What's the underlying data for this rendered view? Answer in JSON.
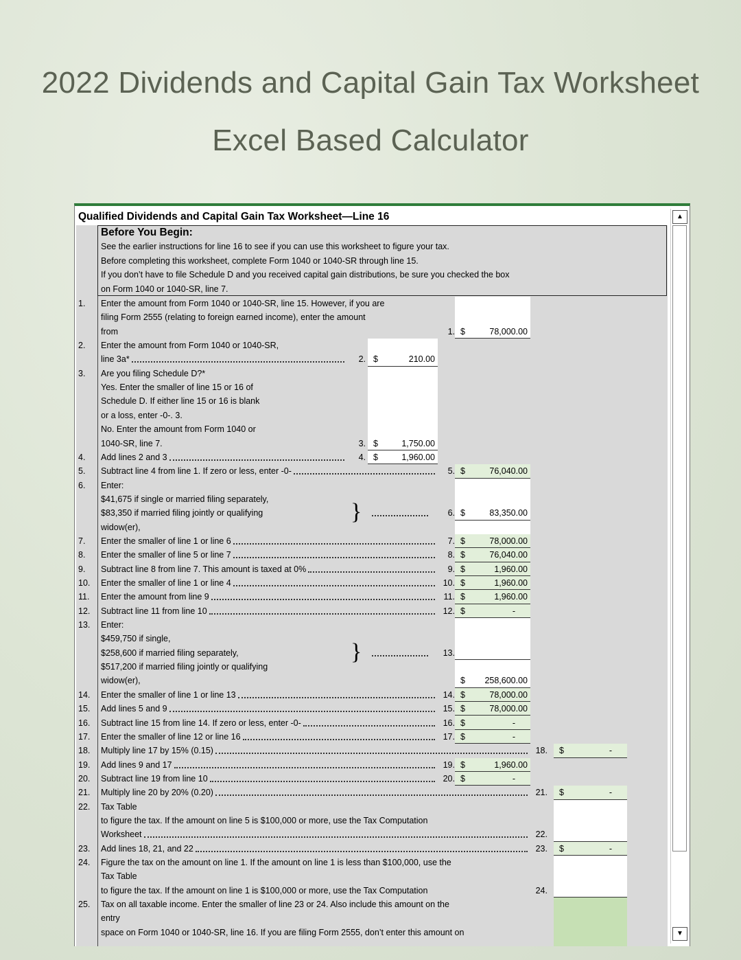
{
  "page": {
    "title_line1": "2022 Dividends and Capital Gain Tax Worksheet",
    "title_line2": "Excel Based Calculator"
  },
  "worksheet": {
    "header": "Qualified Dividends and Capital Gain Tax Worksheet—Line 16",
    "before_you_begin": {
      "heading": "Before You Begin:",
      "lines": [
        "See the earlier instructions for line 16 to see if you can use this worksheet to figure your tax.",
        "Before completing this worksheet, complete Form 1040 or 1040-SR through line 15.",
        "If you don’t have to file Schedule D and you received capital gain distributions, be sure you checked the box",
        "on Form 1040 or 1040-SR, line 7."
      ]
    },
    "colors": {
      "accent": "#2f7d3a",
      "input_bg": "#ffffff",
      "calc_bg": "#e2efda",
      "result_bg": "#c6e0b4",
      "sheet_bg": "#d9d9d9"
    },
    "rows": [
      {
        "num": "1.",
        "text": "Enter the amount from Form 1040 or 1040-SR, line 15. However, if you are"
      },
      {
        "text": "filing Form 2555 (relating to foreign earned income), enter the amount"
      },
      {
        "text": "from",
        "r_lbl": "1.",
        "r_cur": "$",
        "r_amt": "78,000.00"
      },
      {
        "num": "2.",
        "text": "Enter the amount from Form 1040 or 1040-SR,"
      },
      {
        "text": "line 3a*",
        "lead": true,
        "m_lbl": "2.",
        "m_cur": "$",
        "m_amt": "210.00"
      },
      {
        "num": "3.",
        "text": "Are you filing Schedule D?*"
      },
      {
        "text": "Yes. Enter the smaller of line 15 or 16 of"
      },
      {
        "text": "Schedule D. If either line 15 or 16 is blank"
      },
      {
        "text": "or a loss, enter -0-. 3."
      },
      {
        "text": "No. Enter the amount from Form 1040 or"
      },
      {
        "text": "1040-SR, line 7.",
        "m_lbl": "3.",
        "m_cur": "$",
        "m_amt": "1,750.00"
      },
      {
        "num": "4.",
        "text": "Add lines 2 and 3",
        "lead": true,
        "m_lbl": "4.",
        "m_cur": "$",
        "m_amt": "1,960.00"
      },
      {
        "num": "5.",
        "text": "Subtract line 4 from line 1. If zero or less, enter -0-",
        "lead": true,
        "r_lbl": "5.",
        "r_cur": "$",
        "r_amt": "76,040.00"
      },
      {
        "num": "6.",
        "text": "Enter:"
      },
      {
        "text": "$41,675 if single or married filing separately,"
      },
      {
        "text": "$83,350 if married filing jointly or qualifying",
        "brace": "}",
        "r_lbl": "6.",
        "r_cur": "$",
        "r_amt": "83,350.00"
      },
      {
        "text": "widow(er),"
      },
      {
        "num": "7.",
        "text": "Enter the smaller of line 1 or line 6",
        "lead": true,
        "r_lbl": "7.",
        "r_cur": "$",
        "r_amt": "78,000.00"
      },
      {
        "num": "8.",
        "text": "Enter the smaller of line 5 or line 7",
        "lead": true,
        "r_lbl": "8.",
        "r_cur": "$",
        "r_amt": "76,040.00"
      },
      {
        "num": "9.",
        "text": "Subtract line 8 from line 7. This amount is taxed at 0%",
        "lead": true,
        "r_lbl": "9.",
        "r_cur": "$",
        "r_amt": "1,960.00"
      },
      {
        "num": "10.",
        "text": "Enter the smaller of line 1 or line 4",
        "lead": true,
        "r_lbl": "10.",
        "r_cur": "$",
        "r_amt": "1,960.00"
      },
      {
        "num": "11.",
        "text": "Enter the amount from line 9",
        "lead": true,
        "r_lbl": "11.",
        "r_cur": "$",
        "r_amt": "1,960.00"
      },
      {
        "num": "12.",
        "text": "Subtract line 11 from line 10",
        "lead": true,
        "r_lbl": "12.",
        "r_cur": "$",
        "r_amt": "-"
      },
      {
        "num": "13.",
        "text": "Enter:"
      },
      {
        "text": "$459,750 if single,"
      },
      {
        "text": "$258,600 if married filing separately,",
        "brace": "}",
        "r_lbl": "13."
      },
      {
        "text": "$517,200 if married filing jointly or qualifying"
      },
      {
        "text": "widow(er),",
        "r_cur": "$",
        "r_amt": "258,600.00"
      },
      {
        "num": "14.",
        "text": "Enter the smaller of line 1 or line 13",
        "lead": true,
        "r_lbl": "14.",
        "r_cur": "$",
        "r_amt": "78,000.00"
      },
      {
        "num": "15.",
        "text": "Add lines 5 and 9",
        "lead": true,
        "r_lbl": "15.",
        "r_cur": "$",
        "r_amt": "78,000.00"
      },
      {
        "num": "16.",
        "text": "Subtract line 15 from line 14. If zero or less, enter -0-",
        "lead": true,
        "r_lbl": "16.",
        "r_cur": "$",
        "r_amt": "-"
      },
      {
        "num": "17.",
        "text": "Enter the smaller of line 12 or line 16",
        "lead": true,
        "r_lbl": "17.",
        "r_cur": "$",
        "r_amt": "-"
      },
      {
        "num": "18.",
        "text": "Multiply line 17 by 15% (0.15)",
        "lead": true,
        "f_lbl": "18.",
        "f_cur": "$",
        "f_amt": "-"
      },
      {
        "num": "19.",
        "text": "Add lines 9 and 17",
        "lead": true,
        "r_lbl": "19.",
        "r_cur": "$",
        "r_amt": "1,960.00"
      },
      {
        "num": "20.",
        "text": "Subtract line 19 from line 10",
        "lead": true,
        "r_lbl": "20.",
        "r_cur": "$",
        "r_amt": "-"
      },
      {
        "num": "21.",
        "text": "Multiply line 20 by 20% (0.20)",
        "lead": true,
        "f_lbl": "21.",
        "f_cur": "$",
        "f_amt": "-"
      },
      {
        "num": "22.",
        "text": "Tax Table"
      },
      {
        "text": "to figure the tax. If the amount on line 5 is $100,000 or more, use the Tax Computation"
      },
      {
        "text": "Worksheet",
        "lead": true,
        "f_lbl": "22."
      },
      {
        "num": "23.",
        "text": "Add lines 18, 21, and 22",
        "lead": true,
        "f_lbl": "23.",
        "f_cur": "$",
        "f_amt": "-"
      },
      {
        "num": "24.",
        "text": "Figure the tax on the amount on line 1. If the amount on line 1 is less than $100,000, use the"
      },
      {
        "text": "Tax Table"
      },
      {
        "text": "to figure the tax. If the amount on line 1 is $100,000 or more, use the Tax Computation",
        "f_lbl": "24."
      },
      {
        "num": "25.",
        "text": "Tax on all taxable income. Enter the smaller of line 23 or 24. Also include this amount on the"
      },
      {
        "text": "entry"
      },
      {
        "text": "space on Form 1040 or 1040-SR, line 16. If you are filing Form 2555, don’t enter this amount on"
      }
    ]
  },
  "scrollbar": {
    "up_icon": "▲",
    "down_icon": "▼"
  }
}
